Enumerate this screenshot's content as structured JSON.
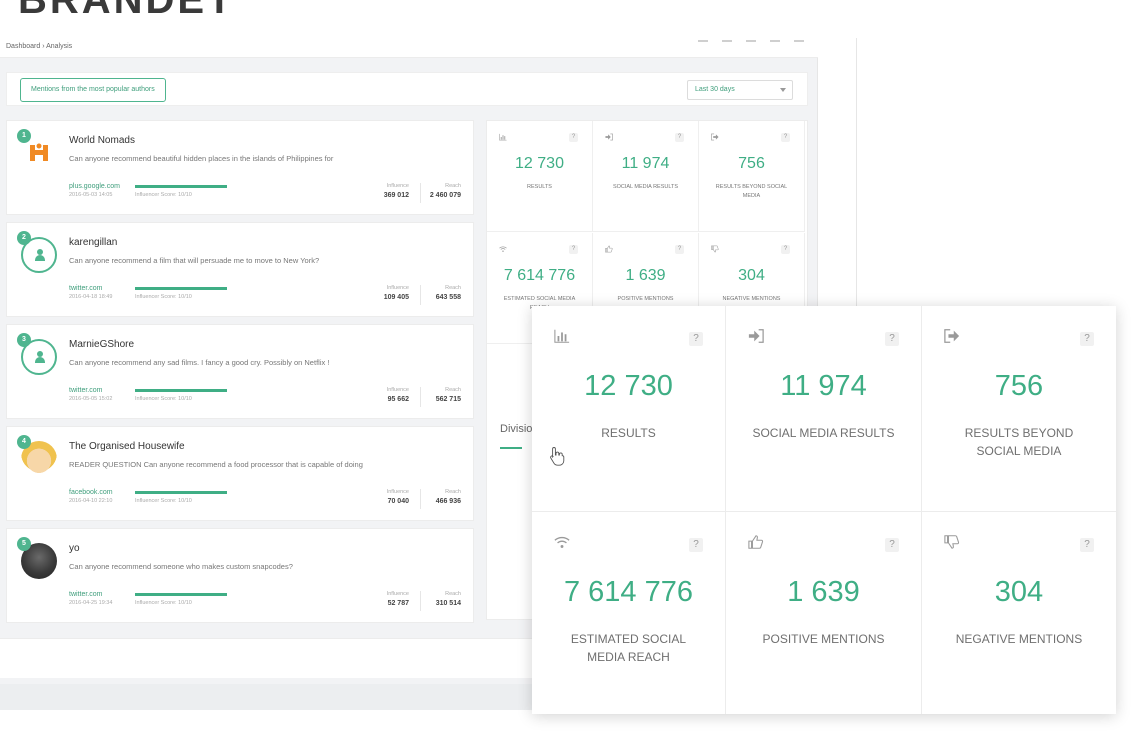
{
  "brand": {
    "text": "BRANDET"
  },
  "breadcrumb": "Dashboard › Analysis",
  "filter": {
    "button_label": "Mentions from the most popular authors",
    "range_value": "Last 30 days"
  },
  "mentions": [
    {
      "rank": "1",
      "author": "World Nomads",
      "text": "Can anyone recommend beautiful hidden places in the islands of Philippines for",
      "source": "plus.google.com",
      "date": "2016-05-03 14:05",
      "score_label": "Influencer Score: 10/10",
      "score": 1.0,
      "influence_label": "Influence",
      "influence": "369 012",
      "reach_label": "Reach",
      "reach": "2 460 079",
      "avatar": "logo"
    },
    {
      "rank": "2",
      "author": "karengillan",
      "text": "Can anyone recommend a film that will persuade me to move to New York?",
      "source": "twitter.com",
      "date": "2016-04-18 18:49",
      "score_label": "Influencer Score: 10/10",
      "score": 1.0,
      "influence_label": "Influence",
      "influence": "109 405",
      "reach_label": "Reach",
      "reach": "643 558",
      "avatar": "outline"
    },
    {
      "rank": "3",
      "author": "MarnieGShore",
      "text": "Can anyone recommend any sad films. I fancy a good cry. Possibly on Netflix !",
      "source": "twitter.com",
      "date": "2016-05-05 15:02",
      "score_label": "Influencer Score: 10/10",
      "score": 1.0,
      "influence_label": "Influence",
      "influence": "95 662",
      "reach_label": "Reach",
      "reach": "562 715",
      "avatar": "outline"
    },
    {
      "rank": "4",
      "author": "The Organised Housewife",
      "text": "READER QUESTION Can anyone recommend a food processor that is capable of doing",
      "source": "facebook.com",
      "date": "2016-04-10 22:10",
      "score_label": "Influencer Score: 10/10",
      "score": 1.0,
      "influence_label": "Influence",
      "influence": "70 040",
      "reach_label": "Reach",
      "reach": "466 936",
      "avatar": "face"
    },
    {
      "rank": "5",
      "author": "yo",
      "text": "Can anyone recommend someone who makes custom snapcodes?",
      "source": "twitter.com",
      "date": "2016-04-25 19:34",
      "score_label": "Influencer Score: 10/10",
      "score": 1.0,
      "influence_label": "Influence",
      "influence": "52 787",
      "reach_label": "Reach",
      "reach": "310 514",
      "avatar": "photo"
    }
  ],
  "stats": [
    {
      "icon": "bar-chart-icon",
      "value": "12 730",
      "label": "RESULTS",
      "help": "?"
    },
    {
      "icon": "sign-in-icon",
      "value": "11 974",
      "label": "SOCIAL MEDIA RESULTS",
      "help": "?"
    },
    {
      "icon": "sign-out-icon",
      "value": "756",
      "label": "RESULTS BEYOND SOCIAL MEDIA",
      "help": "?"
    },
    {
      "icon": "wifi-icon",
      "value": "7 614 776",
      "label": "ESTIMATED SOCIAL MEDIA REACH",
      "help": "?"
    },
    {
      "icon": "thumbs-up-icon",
      "value": "1 639",
      "label": "POSITIVE MENTIONS",
      "help": "?"
    },
    {
      "icon": "thumbs-down-icon",
      "value": "304",
      "label": "NEGATIVE MENTIONS",
      "help": "?"
    }
  ],
  "divisions_label": "Divisio",
  "colors": {
    "accent": "#3fae85",
    "accent_dark": "#3f9e7c",
    "background": "#f2f3f5"
  }
}
